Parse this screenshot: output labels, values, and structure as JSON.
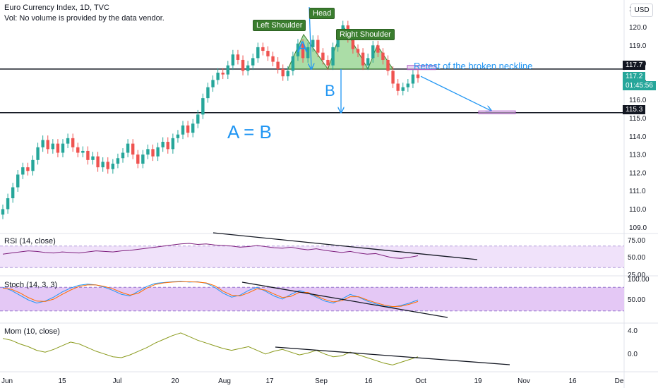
{
  "header": {
    "title": "Euro Currency Index, 1D, TVC",
    "volume_note": "Vol: No volume is provided by the data vendor.",
    "currency_button": "USD"
  },
  "price_tags": {
    "neckline": "117.7",
    "last": "117.2",
    "countdown": "01:45:56",
    "target": "115.3"
  },
  "annotations": {
    "left_shoulder": "Left Shoulder",
    "head": "Head",
    "right_shoulder": "Right Shoulder",
    "a_mark": "A",
    "b_mark": "B",
    "a_equals_b": "A = B",
    "retest": "Retest of the broken neckline"
  },
  "indicators": {
    "rsi_title": "RSI (14, close)",
    "stoch_title": "Stoch (14, 3, 3)",
    "mom_title": "Mom (10, close)",
    "rsi_ticks": [
      "75.00",
      "50.00",
      "25.00"
    ],
    "stoch_ticks": [
      "100.00",
      "50.00"
    ],
    "mom_ticks": [
      "4.0",
      "0.0"
    ]
  },
  "colors": {
    "up": "#26a69a",
    "down": "#ef5350",
    "pattern_fill": "#8fd18a",
    "accent_blue": "#2196f3",
    "rsi_line": "#7e1f7e",
    "mom_line": "#8a9a1c",
    "band_fill": "#f0e2fa",
    "stoch_band": "#e4c8f5"
  },
  "chart_data": {
    "type": "candlestick",
    "x_ticks": [
      "Jun",
      "15",
      "Jul",
      "20",
      "Aug",
      "17",
      "Sep",
      "16",
      "Oct",
      "19",
      "Nov",
      "16",
      "De"
    ],
    "y_ticks": [
      "121.0",
      "120.0",
      "119.0",
      "118.0",
      "117.0",
      "116.0",
      "115.0",
      "114.0",
      "113.0",
      "112.0",
      "111.0",
      "110.0",
      "109.0"
    ],
    "ylim": [
      108.7,
      121.3
    ],
    "levels": {
      "neckline": 117.7,
      "target": 115.3,
      "last": 117.2
    },
    "closes": [
      110.0,
      110.6,
      111.2,
      111.9,
      112.3,
      112.1,
      112.7,
      113.4,
      113.8,
      113.3,
      113.6,
      113.1,
      113.6,
      113.9,
      113.4,
      113.1,
      113.2,
      112.7,
      112.9,
      112.3,
      112.6,
      112.2,
      112.5,
      112.8,
      113.1,
      113.6,
      113.0,
      112.5,
      113.0,
      113.3,
      112.9,
      113.4,
      113.7,
      113.3,
      113.9,
      114.1,
      114.6,
      114.2,
      114.7,
      115.2,
      116.1,
      116.7,
      117.1,
      117.5,
      117.4,
      117.9,
      118.5,
      118.2,
      117.6,
      117.9,
      118.3,
      118.9,
      118.7,
      118.4,
      118.1,
      117.7,
      117.3,
      117.6,
      118.4,
      119.1,
      118.3,
      118.9,
      119.3,
      118.6,
      118.2,
      117.9,
      118.9,
      119.6,
      120.1,
      119.4,
      118.8,
      118.6,
      117.9,
      118.3,
      119.0,
      118.6,
      118.2,
      117.6,
      116.9,
      116.5,
      116.7,
      116.9,
      117.4,
      117.2
    ],
    "pattern": {
      "left_shoulder_peak": 119.6,
      "head_peak": 120.1,
      "right_shoulder_peak": 119.0,
      "neckline": 117.7
    },
    "rsi": [
      55,
      57,
      59,
      61,
      60,
      58,
      57,
      59,
      58,
      57,
      59,
      61,
      60,
      59,
      61,
      62,
      64,
      66,
      68,
      70,
      72,
      74,
      75,
      73,
      74,
      72,
      71,
      70,
      68,
      69,
      71,
      69,
      67,
      66,
      68,
      65,
      63,
      65,
      62,
      60,
      58,
      60,
      57,
      55,
      56,
      52,
      48,
      47,
      49,
      52
    ],
    "stoch_k": [
      80,
      72,
      60,
      48,
      40,
      45,
      55,
      68,
      78,
      85,
      88,
      86,
      80,
      72,
      62,
      58,
      70,
      82,
      90,
      92,
      94,
      95,
      93,
      94,
      90,
      80,
      65,
      55,
      60,
      72,
      80,
      70,
      58,
      50,
      62,
      72,
      65,
      55,
      45,
      40,
      50,
      62,
      55,
      45,
      38,
      32,
      30,
      34,
      40,
      48
    ],
    "stoch_d": [
      78,
      75,
      66,
      54,
      45,
      44,
      50,
      62,
      73,
      82,
      86,
      86,
      82,
      76,
      67,
      60,
      65,
      78,
      87,
      91,
      93,
      94,
      94,
      93,
      91,
      84,
      70,
      60,
      58,
      66,
      76,
      73,
      63,
      54,
      57,
      67,
      67,
      58,
      49,
      43,
      46,
      56,
      56,
      48,
      41,
      35,
      31,
      32,
      37,
      44
    ],
    "momentum": [
      3.2,
      2.8,
      2.0,
      1.4,
      0.6,
      0.2,
      0.8,
      1.6,
      2.4,
      2.0,
      1.2,
      0.4,
      -0.2,
      -0.8,
      -1.0,
      -0.4,
      0.4,
      1.2,
      2.2,
      3.0,
      3.8,
      4.4,
      3.6,
      2.8,
      2.2,
      1.6,
      1.0,
      0.6,
      1.0,
      1.4,
      0.6,
      -0.2,
      0.4,
      0.8,
      0.2,
      -0.4,
      0.0,
      0.6,
      -0.2,
      -0.8,
      -0.6,
      0.2,
      -0.4,
      -1.0,
      -1.6,
      -2.2,
      -2.6,
      -2.0,
      -1.4,
      -0.8
    ]
  }
}
